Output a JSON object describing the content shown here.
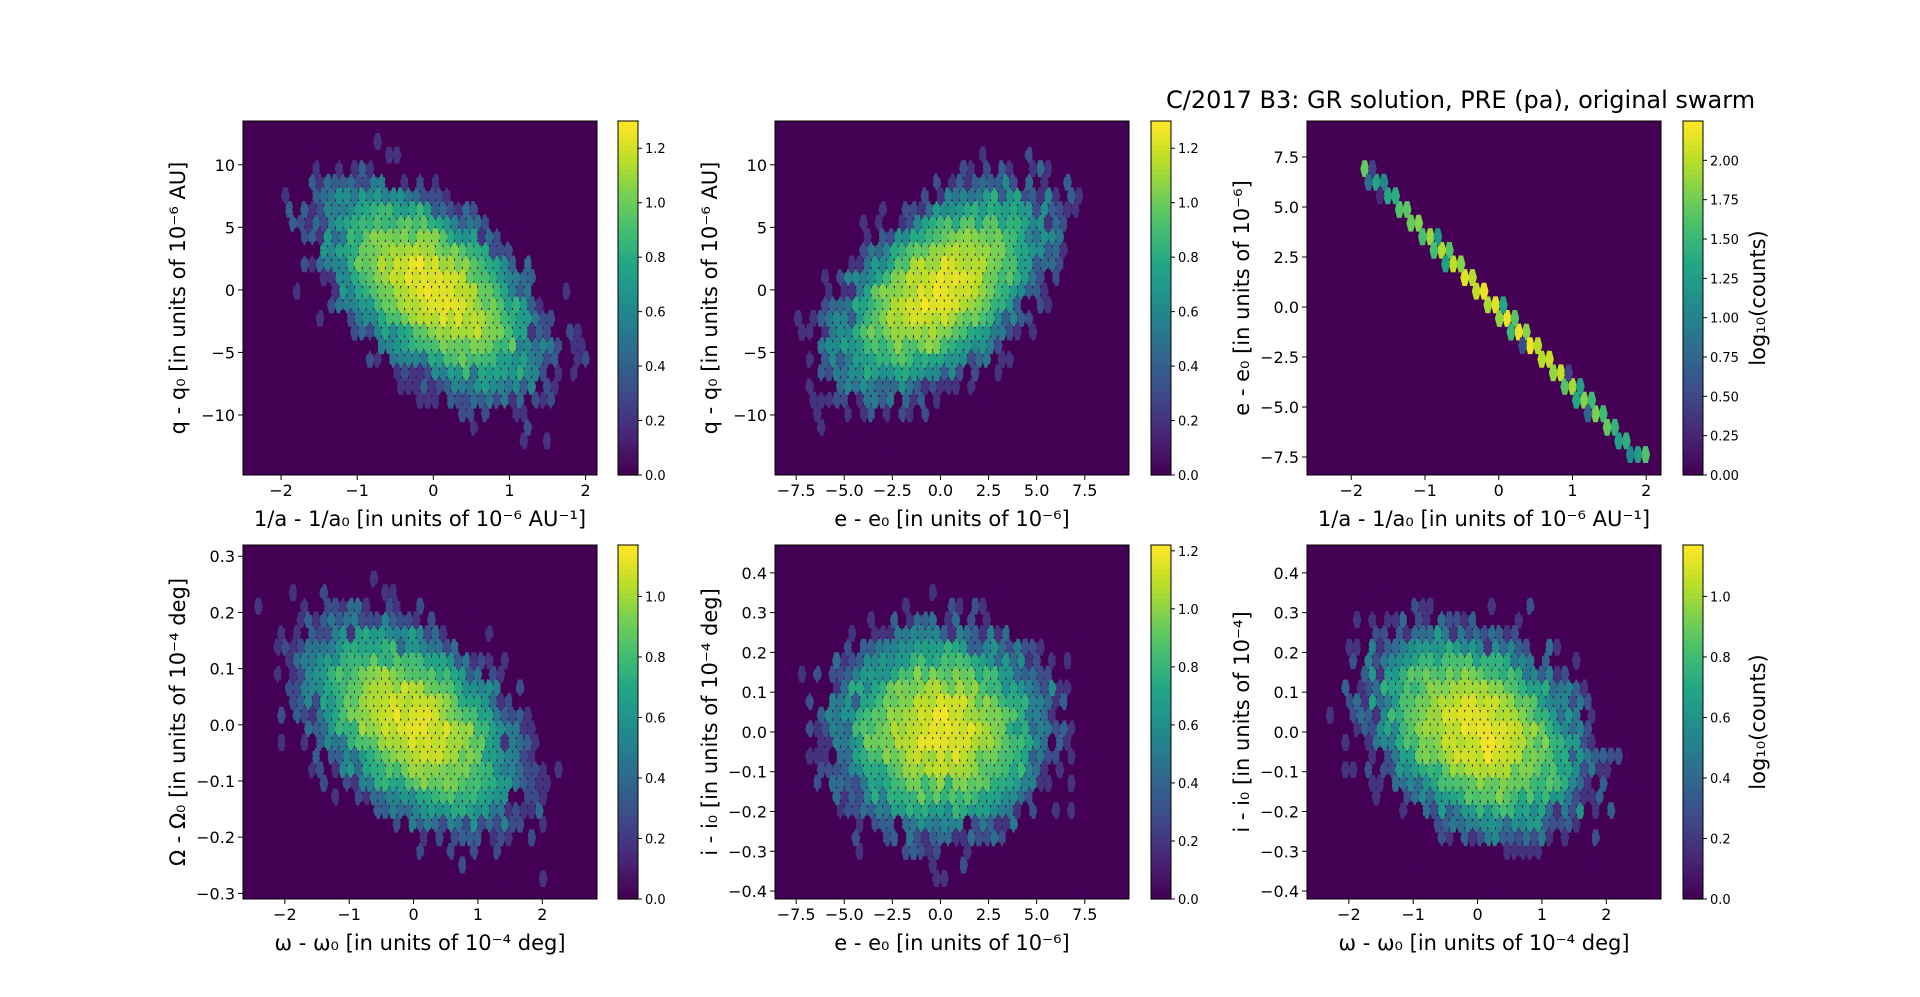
{
  "figure": {
    "title": "C/2017 B3: GR solution, PRE (pa), original swarm"
  },
  "chart_data": [
    {
      "type": "heatmap",
      "title": "",
      "xlabel": "1/a - 1/a₀ [in units of 10⁻⁶ AU⁻¹]",
      "ylabel": "q - q₀ [in units of 10⁻⁶ AU]",
      "xlim": [
        -2.5,
        2.15
      ],
      "ylim": [
        -14.8,
        13.5
      ],
      "xticks": [
        -2,
        -1,
        0,
        1,
        2
      ],
      "yticks": [
        -10,
        -5,
        0,
        5,
        10
      ],
      "colorbar": {
        "label": "",
        "lim": [
          0,
          1.3
        ],
        "ticks": [
          "0.0",
          "0.2",
          "0.4",
          "0.6",
          "0.8",
          "1.0",
          "1.2"
        ]
      },
      "distribution": {
        "kind": "gaussian-cloud",
        "mean": [
          0,
          0
        ],
        "sigma": [
          0.62,
          3.6
        ],
        "corr": -0.55,
        "peak_log10_counts": 1.28
      }
    },
    {
      "type": "heatmap",
      "title": "",
      "xlabel": "e - e₀ [in units of 10⁻⁶]",
      "ylabel": "q - q₀ [in units of 10⁻⁶ AU]",
      "xlim": [
        -8.6,
        9.8
      ],
      "ylim": [
        -14.8,
        13.5
      ],
      "xticks": [
        -7.5,
        -5.0,
        -2.5,
        0.0,
        2.5,
        5.0,
        7.5
      ],
      "yticks": [
        -10,
        -5,
        0,
        5,
        10
      ],
      "colorbar": {
        "label": "",
        "lim": [
          0,
          1.3
        ],
        "ticks": [
          "0.0",
          "0.2",
          "0.4",
          "0.6",
          "0.8",
          "1.0",
          "1.2"
        ]
      },
      "distribution": {
        "kind": "gaussian-cloud",
        "mean": [
          0,
          0
        ],
        "sigma": [
          2.4,
          3.6
        ],
        "corr": 0.55,
        "peak_log10_counts": 1.28
      }
    },
    {
      "type": "heatmap",
      "title": "",
      "xlabel": "1/a - 1/a₀ [in units of 10⁻⁶ AU⁻¹]",
      "ylabel": "e - e₀ [in units of 10⁻⁶]",
      "xlim": [
        -2.6,
        2.2
      ],
      "ylim": [
        -8.4,
        9.3
      ],
      "xticks": [
        -2,
        -1,
        0,
        1,
        2
      ],
      "yticks": [
        -7.5,
        -5.0,
        -2.5,
        0.0,
        2.5,
        5.0,
        7.5
      ],
      "colorbar": {
        "label": "log₁₀(counts)",
        "lim": [
          0,
          2.25
        ],
        "ticks": [
          "0.00",
          "0.25",
          "0.50",
          "0.75",
          "1.00",
          "1.25",
          "1.50",
          "1.75",
          "2.00"
        ]
      },
      "distribution": {
        "kind": "line",
        "x": [
          -1.85,
          1.95
        ],
        "y": [
          7.0,
          -7.7
        ],
        "peak_log10_counts": 2.2
      }
    },
    {
      "type": "heatmap",
      "title": "",
      "xlabel": "ω - ω₀ [in units of 10⁻⁴ deg]",
      "ylabel": "Ω - Ω₀ [in units of 10⁻⁴ deg]",
      "xlim": [
        -2.65,
        2.85
      ],
      "ylim": [
        -0.31,
        0.32
      ],
      "xticks": [
        -2,
        -1,
        0,
        1,
        2
      ],
      "yticks": [
        -0.3,
        -0.2,
        -0.1,
        0.0,
        0.1,
        0.2,
        0.3
      ],
      "colorbar": {
        "label": "",
        "lim": [
          0,
          1.17
        ],
        "ticks": [
          "0.0",
          "0.2",
          "0.4",
          "0.6",
          "0.8",
          "1.0"
        ]
      },
      "distribution": {
        "kind": "gaussian-cloud",
        "mean": [
          0,
          0
        ],
        "sigma": [
          0.72,
          0.08
        ],
        "corr": -0.45,
        "peak_log10_counts": 1.15
      }
    },
    {
      "type": "heatmap",
      "title": "",
      "xlabel": "e - e₀ [in units of 10⁻⁶]",
      "ylabel": "i - i₀ [in units of 10⁻⁴ deg]",
      "xlim": [
        -8.6,
        9.8
      ],
      "ylim": [
        -0.42,
        0.47
      ],
      "xticks": [
        -7.5,
        -5.0,
        -2.5,
        0.0,
        2.5,
        5.0,
        7.5
      ],
      "yticks": [
        -0.4,
        -0.3,
        -0.2,
        -0.1,
        0.0,
        0.1,
        0.2,
        0.3,
        0.4
      ],
      "colorbar": {
        "label": "",
        "lim": [
          0,
          1.22
        ],
        "ticks": [
          "0.0",
          "0.2",
          "0.4",
          "0.6",
          "0.8",
          "1.0",
          "1.2"
        ]
      },
      "distribution": {
        "kind": "gaussian-cloud",
        "mean": [
          0,
          0
        ],
        "sigma": [
          2.4,
          0.11
        ],
        "corr": 0.0,
        "peak_log10_counts": 1.2
      }
    },
    {
      "type": "heatmap",
      "title": "",
      "xlabel": "ω - ω₀ [in units of 10⁻⁴ deg]",
      "ylabel": "i - i₀ [in units of 10⁻⁴]",
      "xlim": [
        -2.65,
        2.85
      ],
      "ylim": [
        -0.42,
        0.47
      ],
      "xticks": [
        -2,
        -1,
        0,
        1,
        2
      ],
      "yticks": [
        -0.4,
        -0.3,
        -0.2,
        -0.1,
        0.0,
        0.1,
        0.2,
        0.3,
        0.4
      ],
      "colorbar": {
        "label": "log₁₀(counts)",
        "lim": [
          0,
          1.17
        ],
        "ticks": [
          "0.0",
          "0.2",
          "0.4",
          "0.6",
          "0.8",
          "1.0"
        ]
      },
      "distribution": {
        "kind": "gaussian-cloud",
        "mean": [
          0,
          0
        ],
        "sigma": [
          0.72,
          0.11
        ],
        "corr": -0.3,
        "peak_log10_counts": 1.15
      }
    }
  ]
}
